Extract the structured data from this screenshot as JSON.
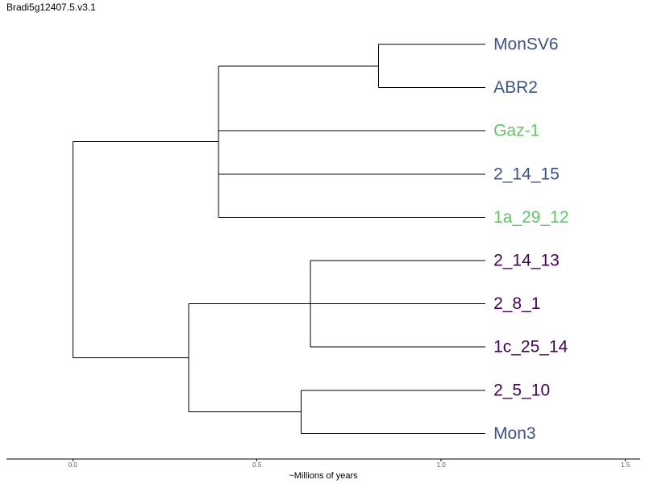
{
  "chart_data": {
    "type": "dendrogram",
    "title": "Bradi5g12407.5.v3.1",
    "xlabel": "~Millions of years",
    "xlim": [
      -0.18,
      1.54
    ],
    "ticks": [
      {
        "value": 0.0,
        "label": "0.0"
      },
      {
        "value": 0.5,
        "label": "0.5"
      },
      {
        "value": 1.0,
        "label": "1.0"
      },
      {
        "value": 1.5,
        "label": "1.5"
      }
    ],
    "tip_depth": 1.12,
    "colors": {
      "blue": "#3b528b",
      "green": "#5ec962",
      "purple": "#440154"
    },
    "tips": [
      {
        "name": "MonSV6",
        "color": "#3b528b"
      },
      {
        "name": "ABR2",
        "color": "#3b528b"
      },
      {
        "name": "Gaz-1",
        "color": "#5ec962"
      },
      {
        "name": "2_14_15",
        "color": "#3b528b"
      },
      {
        "name": "1a_29_12",
        "color": "#5ec962"
      },
      {
        "name": "2_14_13",
        "color": "#440154"
      },
      {
        "name": "2_8_1",
        "color": "#440154"
      },
      {
        "name": "1c_25_14",
        "color": "#440154"
      },
      {
        "name": "2_5_10",
        "color": "#440154"
      },
      {
        "name": "Mon3",
        "color": "#3b528b"
      }
    ],
    "tree": {
      "depth": 0.0,
      "children": [
        {
          "depth": 0.395,
          "children": [
            {
              "depth": 0.83,
              "children": [
                {
                  "tip": 0
                },
                {
                  "tip": 1
                }
              ]
            },
            {
              "tip": 2
            },
            {
              "tip": 3
            },
            {
              "tip": 4
            }
          ]
        },
        {
          "depth": 0.315,
          "children": [
            {
              "depth": 0.645,
              "children": [
                {
                  "tip": 5
                },
                {
                  "tip": 6
                },
                {
                  "tip": 7
                }
              ]
            },
            {
              "depth": 0.62,
              "children": [
                {
                  "tip": 8
                },
                {
                  "tip": 9
                }
              ]
            }
          ]
        }
      ]
    }
  }
}
